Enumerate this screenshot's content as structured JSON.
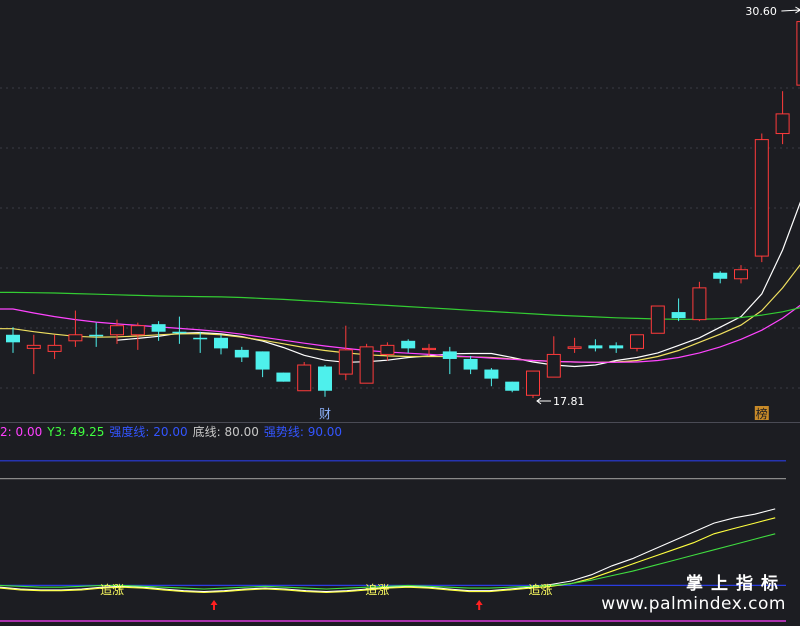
{
  "chart_data": [
    {
      "type": "candlestick",
      "price_high_label": "30.60",
      "price_low_label": "17.81",
      "candles": [
        {
          "o": 19.9,
          "c": 19.65,
          "h": 20.15,
          "l": 19.3
        },
        {
          "o": 19.45,
          "c": 19.55,
          "h": 19.9,
          "l": 18.6
        },
        {
          "o": 19.35,
          "c": 19.55,
          "h": 19.9,
          "l": 19.1
        },
        {
          "o": 19.7,
          "c": 19.9,
          "h": 20.7,
          "l": 19.5
        },
        {
          "o": 19.9,
          "c": 19.85,
          "h": 20.3,
          "l": 19.5
        },
        {
          "o": 19.9,
          "c": 20.2,
          "h": 20.4,
          "l": 19.6
        },
        {
          "o": 19.9,
          "c": 20.2,
          "h": 20.3,
          "l": 19.4
        },
        {
          "o": 20.25,
          "c": 20.0,
          "h": 20.35,
          "l": 19.7
        },
        {
          "o": 20.0,
          "c": 19.95,
          "h": 20.5,
          "l": 19.6
        },
        {
          "o": 19.8,
          "c": 19.75,
          "h": 20.0,
          "l": 19.3
        },
        {
          "o": 19.8,
          "c": 19.45,
          "h": 19.9,
          "l": 19.25
        },
        {
          "o": 19.4,
          "c": 19.15,
          "h": 19.5,
          "l": 19.0
        },
        {
          "o": 19.35,
          "c": 18.75,
          "h": 19.35,
          "l": 18.5
        },
        {
          "o": 18.65,
          "c": 18.35,
          "h": 18.65,
          "l": 18.35
        },
        {
          "o": 18.05,
          "c": 18.9,
          "h": 19.0,
          "l": 18.05
        },
        {
          "o": 18.85,
          "c": 18.05,
          "h": 18.9,
          "l": 17.85
        },
        {
          "o": 18.6,
          "c": 19.4,
          "h": 20.2,
          "l": 18.4
        },
        {
          "o": 18.3,
          "c": 19.5,
          "h": 19.6,
          "l": 18.3
        },
        {
          "o": 19.25,
          "c": 19.55,
          "h": 19.65,
          "l": 19.05
        },
        {
          "o": 19.7,
          "c": 19.45,
          "h": 19.75,
          "l": 19.3
        },
        {
          "o": 19.45,
          "c": 19.45,
          "h": 19.6,
          "l": 19.2
        },
        {
          "o": 19.35,
          "c": 19.1,
          "h": 19.5,
          "l": 18.6
        },
        {
          "o": 19.1,
          "c": 18.75,
          "h": 19.2,
          "l": 18.6
        },
        {
          "o": 18.75,
          "c": 18.45,
          "h": 18.8,
          "l": 18.2
        },
        {
          "o": 18.35,
          "c": 18.05,
          "h": 18.35,
          "l": 18.0
        },
        {
          "o": 17.9,
          "c": 18.7,
          "h": 18.7,
          "l": 17.81
        },
        {
          "o": 18.5,
          "c": 19.25,
          "h": 19.85,
          "l": 18.5
        },
        {
          "o": 19.45,
          "c": 19.5,
          "h": 19.8,
          "l": 19.3
        },
        {
          "o": 19.55,
          "c": 19.45,
          "h": 19.75,
          "l": 19.35
        },
        {
          "o": 19.55,
          "c": 19.45,
          "h": 19.65,
          "l": 19.3
        },
        {
          "o": 19.45,
          "c": 19.9,
          "h": 19.9,
          "l": 19.35
        },
        {
          "o": 19.95,
          "c": 20.85,
          "h": 20.85,
          "l": 19.95
        },
        {
          "o": 20.65,
          "c": 20.45,
          "h": 21.1,
          "l": 20.35
        },
        {
          "o": 20.4,
          "c": 21.45,
          "h": 21.65,
          "l": 20.35
        },
        {
          "o": 21.95,
          "c": 21.75,
          "h": 22.0,
          "l": 21.6
        },
        {
          "o": 21.75,
          "c": 22.05,
          "h": 22.2,
          "l": 21.6
        },
        {
          "o": 22.5,
          "c": 26.35,
          "h": 26.55,
          "l": 22.3
        },
        {
          "o": 26.55,
          "c": 27.2,
          "h": 27.95,
          "l": 26.2
        },
        {
          "o": 28.15,
          "c": 30.25,
          "h": 30.6,
          "l": 27.95
        }
      ],
      "ma_lines": [
        {
          "color": "#ffffff",
          "values": [
            null,
            null,
            null,
            null,
            null,
            19.72,
            19.78,
            19.85,
            19.95,
            19.97,
            19.93,
            19.84,
            19.69,
            19.48,
            19.22,
            19.06,
            18.99,
            19.01,
            19.06,
            19.15,
            19.2,
            19.27,
            19.28,
            19.28,
            19.15,
            19.0,
            18.9,
            18.85,
            18.9,
            19.05,
            19.15,
            19.3,
            19.55,
            19.8,
            20.15,
            20.5,
            21.25,
            22.7,
            24.55
          ]
        },
        {
          "color": "#f0e060",
          "values": [
            20.1,
            20.0,
            19.92,
            19.85,
            19.82,
            19.83,
            19.86,
            19.9,
            19.93,
            19.94,
            19.9,
            19.82,
            19.72,
            19.6,
            19.48,
            19.38,
            19.3,
            19.24,
            19.2,
            19.18,
            19.18,
            19.18,
            19.17,
            19.15,
            19.1,
            19.05,
            19.02,
            19.0,
            18.99,
            19.0,
            19.05,
            19.18,
            19.38,
            19.65,
            19.92,
            20.22,
            20.7,
            21.45,
            22.35
          ]
        },
        {
          "color": "#ff44ff",
          "values": [
            20.75,
            20.62,
            20.5,
            20.4,
            20.32,
            20.26,
            20.21,
            20.16,
            20.11,
            20.06,
            20.0,
            19.92,
            19.82,
            19.72,
            19.62,
            19.53,
            19.45,
            19.38,
            19.33,
            19.29,
            19.25,
            19.21,
            19.17,
            19.13,
            19.09,
            19.05,
            19.02,
            19.0,
            18.99,
            18.99,
            19.0,
            19.05,
            19.15,
            19.3,
            19.5,
            19.75,
            20.05,
            20.45,
            20.95
          ]
        },
        {
          "color": "#33cc33",
          "values": [
            21.3,
            21.29,
            21.28,
            21.26,
            21.24,
            21.22,
            21.2,
            21.18,
            21.17,
            21.16,
            21.15,
            21.13,
            21.1,
            21.07,
            21.03,
            20.99,
            20.95,
            20.91,
            20.87,
            20.83,
            20.79,
            20.75,
            20.71,
            20.67,
            20.63,
            20.59,
            20.55,
            20.52,
            20.49,
            20.46,
            20.44,
            20.42,
            20.41,
            20.41,
            20.43,
            20.47,
            20.55,
            20.66,
            20.82
          ]
        }
      ],
      "markers": [
        {
          "index": 15,
          "text": "财",
          "color": "#8fb4ff",
          "bg": ""
        },
        {
          "index": 36,
          "text": "榜",
          "color": "#1c1d22",
          "bg": "#c88a28"
        }
      ]
    },
    {
      "type": "line",
      "indicator_labels": [
        {
          "text": "2: 0.00",
          "color": "#ff40ff"
        },
        {
          "text": "Y3: 49.25",
          "color": "#40ff40"
        },
        {
          "text": "强度线: 20.00",
          "color": "#3355ff"
        },
        {
          "text": "底线: 80.00",
          "color": "#c8c8c8"
        },
        {
          "text": "强势线: 90.00",
          "color": "#3355ff"
        }
      ],
      "ylim": [
        0,
        100
      ],
      "hlines": [
        {
          "value": 90,
          "color": "#2a3de0"
        },
        {
          "value": 80,
          "color": "#8a8a8a"
        },
        {
          "value": 20,
          "color": "#2a3de0"
        },
        {
          "value": 0,
          "color": "#ff40ff"
        }
      ],
      "series": [
        {
          "color": "#ffffff",
          "values": [
            19.0,
            18.0,
            17.5,
            17.5,
            18.0,
            19.0,
            19.5,
            19.0,
            18.0,
            17.0,
            16.5,
            17.0,
            18.0,
            18.5,
            18.0,
            17.0,
            16.5,
            17.0,
            18.0,
            19.0,
            19.5,
            19.0,
            18.0,
            17.0,
            17.0,
            18.0,
            19.0,
            20.5,
            22.5,
            26.0,
            31.0,
            35.0,
            40.0,
            45.0,
            50.0,
            55.0,
            58.0,
            60.0,
            63.0
          ]
        },
        {
          "color": "#ffff40",
          "values": [
            18.5,
            17.5,
            17.0,
            17.0,
            17.5,
            18.5,
            19.0,
            18.5,
            17.5,
            16.5,
            16.0,
            16.5,
            17.5,
            18.0,
            17.5,
            16.5,
            16.0,
            16.5,
            17.5,
            18.5,
            19.0,
            18.5,
            17.5,
            16.5,
            16.5,
            17.5,
            18.5,
            19.5,
            21.0,
            24.0,
            28.0,
            32.0,
            36.0,
            40.0,
            44.0,
            49.0,
            52.0,
            55.0,
            58.0
          ]
        },
        {
          "color": "#40dd40",
          "values": [
            20.0,
            19.5,
            19.0,
            19.0,
            19.5,
            20.0,
            20.0,
            19.5,
            19.0,
            18.5,
            18.0,
            18.5,
            19.0,
            19.5,
            19.0,
            18.5,
            18.0,
            18.5,
            19.0,
            19.5,
            20.0,
            19.5,
            19.0,
            18.5,
            18.5,
            19.0,
            19.5,
            20.0,
            21.0,
            23.0,
            25.5,
            28.0,
            31.0,
            34.0,
            37.0,
            40.0,
            43.0,
            46.0,
            49.0
          ]
        }
      ],
      "signals": [
        {
          "index": 5,
          "text": "追涨",
          "color": "#ffff60"
        },
        {
          "index": 18,
          "text": "追涨",
          "color": "#ffff60"
        },
        {
          "index": 26,
          "text": "追涨",
          "color": "#ffff60"
        }
      ],
      "arrows": [
        {
          "index": 10,
          "color": "#ff2020"
        },
        {
          "index": 23,
          "color": "#ff2020"
        }
      ]
    }
  ],
  "watermark": {
    "cn": "掌上指标",
    "en": "www.palmindex.com"
  }
}
